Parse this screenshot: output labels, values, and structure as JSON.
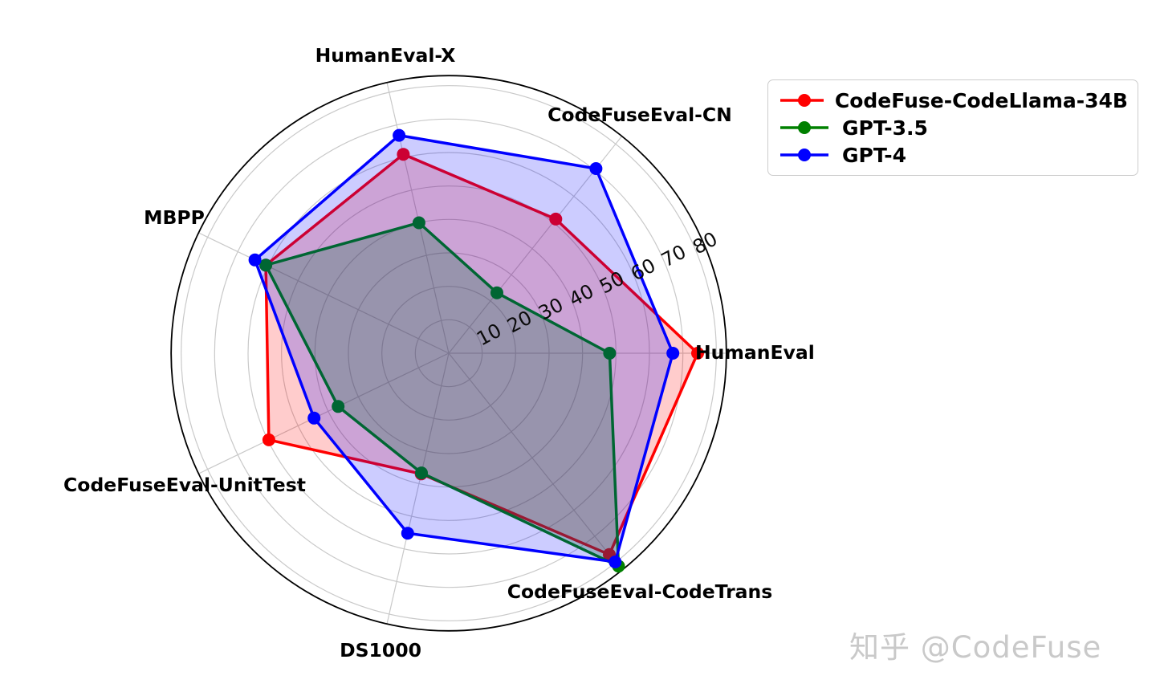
{
  "chart_data": {
    "type": "radar",
    "categories": [
      "HumanEval",
      "CodeFuseEval-CN",
      "HumanEval-X",
      "MBPP",
      "CodeFuseEval-UnitTest",
      "DS1000",
      "CodeFuseEval-CodeTrans"
    ],
    "angles_deg": [
      0,
      51.43,
      102.86,
      154.29,
      205.71,
      257.14,
      308.57
    ],
    "r_ticks": [
      10,
      20,
      30,
      40,
      50,
      60,
      70,
      80
    ],
    "r_axis_max": 83,
    "grid": true,
    "legend_position": "upper right",
    "series": [
      {
        "name": "CodeFuse-CodeLlama-34B",
        "color": "#ff0000",
        "fill_opacity": 0.2,
        "values": [
          74.4,
          51.3,
          61.0,
          60.7,
          59.7,
          37.0,
          77.0
        ]
      },
      {
        "name": "GPT-3.5",
        "color": "#008000",
        "fill_opacity": 0.25,
        "values": [
          48.1,
          23.1,
          40.0,
          60.7,
          36.7,
          36.7,
          81.4
        ]
      },
      {
        "name": "GPT-4",
        "color": "#0000ff",
        "fill_opacity": 0.2,
        "values": [
          67.0,
          70.6,
          66.8,
          64.3,
          44.7,
          55.2,
          79.8
        ]
      }
    ]
  },
  "legend": {
    "items": [
      {
        "label": "CodeFuse-CodeLlama-34B",
        "color": "#ff0000"
      },
      {
        "label": "GPT-3.5",
        "color": "#008000"
      },
      {
        "label": "GPT-4",
        "color": "#0000ff"
      }
    ]
  },
  "colors": {
    "grid_line": "#c9c9c9",
    "outer_circle": "#000000",
    "tick_text": "#0a0a0a",
    "watermark_text": "#c9c9c9"
  },
  "watermark": {
    "text": "知乎 @CodeFuse"
  }
}
